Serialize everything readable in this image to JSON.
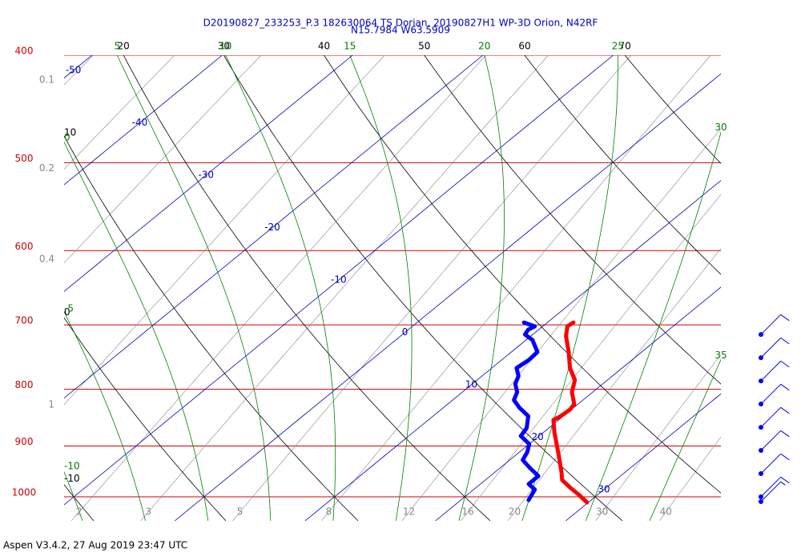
{
  "chart_data": {
    "type": "skew-t",
    "title": "D20190827_233253_P.3 182630064 TS Dorian, 20190827H1 WP-3D Orion, N42RF",
    "subtitle": "N15.7984 W63.5909",
    "footer": "Aspen V3.4.2, 27 Aug 2019  23:47 UTC",
    "log_y": true,
    "ylim": [
      1051,
      400
    ],
    "xlim": [
      -8.5,
      41.9
    ],
    "yticks": [
      400,
      500,
      600,
      700,
      800,
      900,
      1000
    ],
    "isobar_color": "#d00000",
    "isotherms": [
      -50,
      -40,
      -30,
      -20,
      -10,
      0,
      10,
      20,
      30
    ],
    "isotherm_color": "#0000c0",
    "dry_adiabats": [
      -10,
      0,
      10,
      20,
      30,
      40,
      50,
      60,
      70
    ],
    "dry_adiabat_color": "#000000",
    "moist_adiabats": [
      -10,
      -5,
      0,
      5,
      10,
      15,
      20,
      25,
      30,
      35
    ],
    "moist_adiabat_color": "#008000",
    "mixing_ratios": [
      0.1,
      0.2,
      0.4,
      1,
      2,
      3,
      5,
      8,
      12,
      16,
      20,
      30,
      40
    ],
    "mixing_ratio_color": "#888888",
    "series": [
      {
        "color": "#ff0000",
        "pressure": [
          696.5,
          702.2,
          716.4,
          740.5,
          765.5,
          784.8,
          804.6,
          824.9,
          834.5,
          845.7,
          852.7,
          874.2,
          896.3,
          918.9,
          949.9,
          965.8,
          981.9,
          995.0,
          1011.7
        ],
        "values": [
          12.0,
          11.9,
          12.7,
          14.4,
          16.0,
          17.5,
          18.4,
          19.7,
          19.9,
          19.8,
          19.6,
          20.8,
          22.1,
          23.4,
          25.1,
          25.9,
          27.3,
          28.5,
          29.9
        ]
      },
      {
        "color": "#0000ff",
        "pressure": [
          696.5,
          702.2,
          707.0,
          714.0,
          722.3,
          740.5,
          752.9,
          765.5,
          778.3,
          791.3,
          804.6,
          818.1,
          831.8,
          845.7,
          867.0,
          881.5,
          896.3,
          911.3,
          926.5,
          942.0,
          957.8,
          973.8,
          985.2,
          1006.7
        ],
        "values": [
          8.2,
          9.4,
          9.2,
          9.4,
          10.5,
          12.0,
          12.1,
          11.9,
          12.8,
          13.3,
          14.2,
          14.7,
          15.9,
          17.3,
          18.3,
          18.6,
          20.0,
          20.6,
          21.0,
          22.3,
          23.7,
          23.7,
          24.7,
          25.2
        ]
      }
    ],
    "winds": {
      "color": "#0000ff",
      "pressure": [
        714.0,
        749.3,
        786.3,
        824.9,
        865.6,
        908.2,
        953.0,
        1000.0,
        1010.0
      ],
      "speed": [
        10,
        10,
        10,
        10,
        10,
        10,
        10,
        10,
        5
      ],
      "direction": [
        45,
        45,
        45,
        45,
        45,
        45,
        45,
        45,
        45
      ]
    }
  }
}
